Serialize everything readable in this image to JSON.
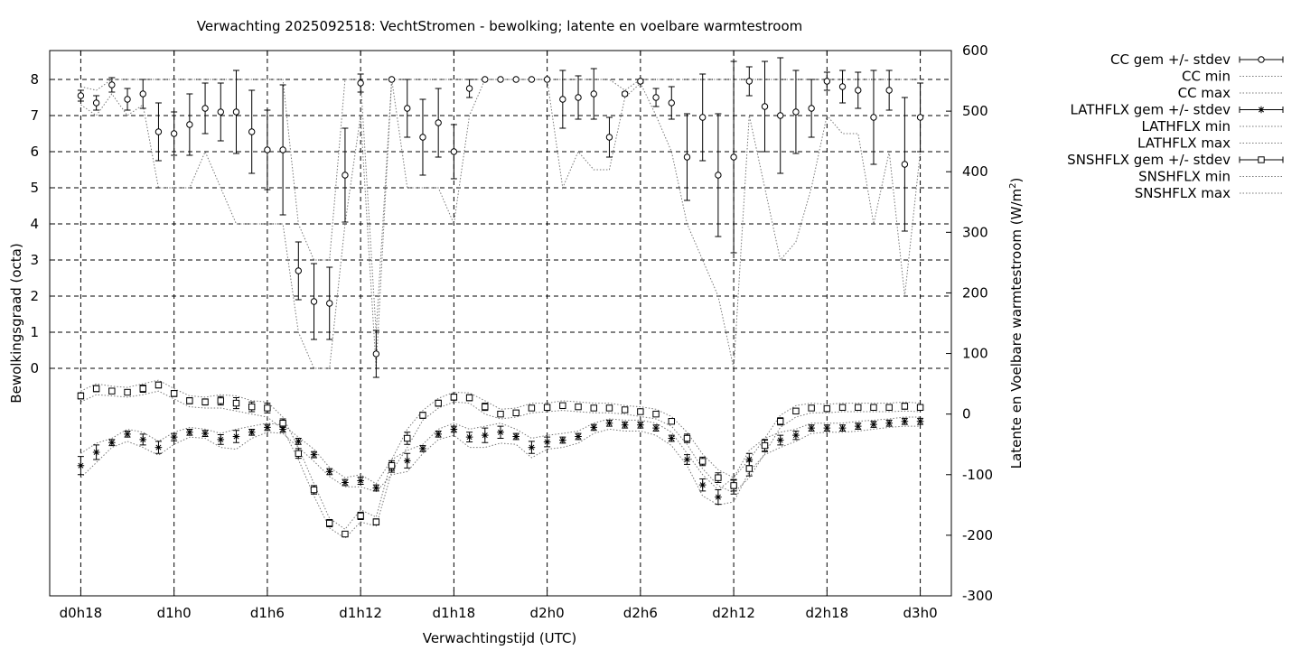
{
  "chart_data": {
    "type": "line",
    "title": "Verwachting 2025092518: VechtStromen - bewolking; latente en voelbare warmtestroom",
    "xlabel": "Verwachtingstijd (UTC)",
    "ylabel": "Bewolkingsgraad (octa)",
    "y2label_main": "Latente en Voelbare warmtestroom (W/m",
    "y2label_sup": "2",
    "y2label_end": ")",
    "x_unit": "hours since d0h18",
    "xlim": [
      -2,
      56
    ],
    "ylim": [
      -6.3,
      8.8
    ],
    "y2lim": [
      -300,
      600
    ],
    "x_ticks": [
      {
        "x": 0,
        "label": "d0h18"
      },
      {
        "x": 6,
        "label": "d1h0"
      },
      {
        "x": 12,
        "label": "d1h6"
      },
      {
        "x": 18,
        "label": "d1h12"
      },
      {
        "x": 24,
        "label": "d1h18"
      },
      {
        "x": 30,
        "label": "d2h0"
      },
      {
        "x": 36,
        "label": "d2h6"
      },
      {
        "x": 42,
        "label": "d2h12"
      },
      {
        "x": 48,
        "label": "d2h18"
      },
      {
        "x": 54,
        "label": "d3h0"
      }
    ],
    "y_ticks": [
      "0",
      "1",
      "2",
      "3",
      "4",
      "5",
      "6",
      "7",
      "8"
    ],
    "y2_ticks": [
      "-300",
      "-200",
      "-100",
      "0",
      "100",
      "200",
      "300",
      "400",
      "500",
      "600"
    ],
    "grid": true,
    "legend_position": "outside-right",
    "legend": [
      "CC gem +/- stdev",
      "CC min",
      "CC max",
      "LATHFLX gem +/- stdev",
      "LATHFLX min",
      "LATHFLX max",
      "SNSHFLX gem +/- stdev",
      "SNSHFLX min",
      "SNSHFLX max"
    ],
    "x": [
      0,
      1,
      2,
      3,
      4,
      5,
      6,
      7,
      8,
      9,
      10,
      11,
      12,
      13,
      14,
      15,
      16,
      17,
      18,
      19,
      20,
      21,
      22,
      23,
      24,
      25,
      26,
      27,
      28,
      29,
      30,
      31,
      32,
      33,
      34,
      35,
      36,
      37,
      38,
      39,
      40,
      41,
      42,
      43,
      44,
      45,
      46,
      47,
      48,
      49,
      50,
      51,
      52,
      53,
      54
    ],
    "series": [
      {
        "name": "CC gem +/- stdev",
        "axis": "y1",
        "marker": "circle",
        "values": [
          7.55,
          7.35,
          7.85,
          7.45,
          7.6,
          6.55,
          6.5,
          6.75,
          7.2,
          7.1,
          7.1,
          6.55,
          6.05,
          6.05,
          2.7,
          1.85,
          1.8,
          5.35,
          7.9,
          0.4,
          8.0,
          7.2,
          6.4,
          6.8,
          6.0,
          7.75,
          8.0,
          8.0,
          8.0,
          8.0,
          8.0,
          7.45,
          7.5,
          7.6,
          6.4,
          7.6,
          7.95,
          7.5,
          7.35,
          5.85,
          6.95,
          5.35,
          5.85,
          7.95,
          7.25,
          7.0,
          7.1,
          7.2,
          7.95,
          7.8,
          7.7,
          6.95,
          7.7,
          5.65,
          6.95
        ],
        "stdev": [
          0.15,
          0.2,
          0.2,
          0.3,
          0.4,
          0.8,
          0.6,
          0.85,
          0.7,
          0.8,
          1.15,
          1.15,
          1.1,
          1.8,
          0.8,
          1.05,
          1.0,
          1.3,
          0.25,
          0.65,
          0.0,
          0.8,
          1.05,
          0.95,
          0.75,
          0.25,
          0.0,
          0.0,
          0.0,
          0.0,
          0.0,
          0.8,
          0.6,
          0.7,
          0.55,
          0.05,
          0.05,
          0.25,
          0.45,
          1.2,
          1.2,
          1.7,
          2.65,
          0.4,
          1.25,
          1.6,
          1.15,
          0.8,
          0.25,
          0.45,
          0.5,
          1.3,
          0.55,
          1.85,
          0.95
        ]
      },
      {
        "name": "CC min",
        "axis": "y1",
        "line": "dotted",
        "values": [
          7.3,
          7.0,
          7.6,
          7.0,
          7.3,
          5.0,
          5.0,
          5.0,
          6.0,
          5.0,
          4.0,
          4.0,
          4.0,
          4.0,
          1.0,
          0.0,
          0.0,
          4.0,
          7.0,
          0.0,
          8.0,
          5.0,
          5.0,
          5.0,
          4.0,
          7.0,
          8.0,
          8.0,
          8.0,
          8.0,
          8.0,
          5.0,
          6.0,
          5.5,
          5.5,
          7.5,
          7.9,
          7.0,
          6.0,
          4.0,
          3.0,
          2.0,
          0.0,
          7.0,
          5.0,
          3.0,
          3.5,
          5.0,
          7.0,
          6.5,
          6.5,
          4.0,
          6.0,
          2.0,
          6.0
        ]
      },
      {
        "name": "CC max",
        "axis": "y1",
        "line": "dotted",
        "values": [
          7.8,
          7.7,
          8.0,
          8.0,
          8.0,
          8.0,
          8.0,
          8.0,
          8.0,
          8.0,
          8.0,
          8.0,
          8.0,
          8.0,
          4.0,
          3.0,
          3.0,
          8.0,
          8.0,
          1.0,
          8.0,
          8.0,
          8.0,
          8.0,
          8.0,
          8.0,
          8.0,
          8.0,
          8.0,
          8.0,
          8.0,
          8.0,
          8.0,
          8.0,
          8.0,
          7.7,
          8.0,
          8.0,
          8.0,
          8.0,
          8.0,
          8.0,
          8.0,
          8.0,
          8.0,
          8.0,
          8.0,
          8.0,
          8.0,
          8.0,
          8.0,
          8.0,
          8.0,
          8.0,
          8.0
        ]
      },
      {
        "name": "LATHFLX gem +/- stdev",
        "axis": "y2",
        "marker": "star",
        "values": [
          -85,
          -63,
          -47,
          -33,
          -42,
          -55,
          -38,
          -30,
          -32,
          -42,
          -37,
          -30,
          -22,
          -25,
          -45,
          -67,
          -95,
          -113,
          -110,
          -122,
          -88,
          -77,
          -57,
          -33,
          -25,
          -38,
          -35,
          -30,
          -37,
          -55,
          -46,
          -43,
          -37,
          -22,
          -15,
          -18,
          -18,
          -23,
          -40,
          -75,
          -117,
          -137,
          -120,
          -75,
          -52,
          -43,
          -35,
          -23,
          -23,
          -23,
          -20,
          -17,
          -15,
          -12,
          -12
        ],
        "stdev": [
          15,
          12,
          5,
          5,
          9,
          10,
          6,
          5,
          5,
          8,
          10,
          5,
          5,
          5,
          5,
          5,
          5,
          5,
          6,
          5,
          8,
          12,
          5,
          5,
          5,
          8,
          12,
          10,
          5,
          10,
          8,
          5,
          5,
          5,
          5,
          5,
          5,
          5,
          5,
          8,
          10,
          12,
          12,
          10,
          10,
          8,
          7,
          5,
          5,
          5,
          5,
          5,
          5,
          5,
          5
        ]
      },
      {
        "name": "LATHFLX min",
        "axis": "y2",
        "line": "dotted",
        "values": [
          -105,
          -80,
          -55,
          -45,
          -55,
          -68,
          -50,
          -38,
          -40,
          -55,
          -58,
          -40,
          -30,
          -32,
          -55,
          -78,
          -103,
          -120,
          -120,
          -128,
          -100,
          -95,
          -65,
          -42,
          -35,
          -55,
          -55,
          -48,
          -50,
          -72,
          -58,
          -55,
          -48,
          -32,
          -25,
          -28,
          -28,
          -35,
          -52,
          -85,
          -135,
          -150,
          -145,
          -95,
          -67,
          -55,
          -45,
          -32,
          -30,
          -30,
          -28,
          -25,
          -22,
          -20,
          -20
        ]
      },
      {
        "name": "LATHFLX max",
        "axis": "y2",
        "line": "dotted",
        "values": [
          -65,
          -48,
          -40,
          -25,
          -30,
          -45,
          -30,
          -22,
          -25,
          -32,
          -25,
          -20,
          -15,
          -18,
          -38,
          -58,
          -88,
          -105,
          -100,
          -115,
          -75,
          -60,
          -50,
          -25,
          -15,
          -25,
          -20,
          -15,
          -25,
          -40,
          -35,
          -32,
          -28,
          -15,
          -8,
          -10,
          -10,
          -15,
          -30,
          -65,
          -100,
          -125,
          -105,
          -60,
          -40,
          -30,
          -25,
          -15,
          -15,
          -15,
          -12,
          -10,
          -8,
          -5,
          -5
        ]
      },
      {
        "name": "SNSHFLX gem +/- stdev",
        "axis": "y2",
        "marker": "square",
        "values": [
          30,
          42,
          38,
          36,
          42,
          48,
          34,
          22,
          20,
          22,
          18,
          12,
          10,
          -15,
          -65,
          -125,
          -180,
          -198,
          -168,
          -178,
          -85,
          -40,
          -2,
          18,
          28,
          27,
          12,
          0,
          2,
          10,
          11,
          14,
          12,
          10,
          10,
          7,
          4,
          0,
          -12,
          -40,
          -78,
          -105,
          -118,
          -90,
          -52,
          -12,
          5,
          10,
          9,
          11,
          11,
          11,
          11,
          13,
          11
        ],
        "stdev": [
          5,
          5,
          4,
          4,
          6,
          5,
          5,
          5,
          5,
          7,
          9,
          8,
          8,
          7,
          8,
          7,
          6,
          4,
          6,
          5,
          8,
          10,
          5,
          5,
          5,
          5,
          6,
          4,
          3,
          4,
          4,
          3,
          3,
          3,
          3,
          3,
          3,
          3,
          4,
          7,
          7,
          8,
          9,
          12,
          9,
          6,
          4,
          4,
          4,
          3,
          3,
          3,
          3,
          5,
          3
        ]
      },
      {
        "name": "SNSHFLX min",
        "axis": "y2",
        "line": "dotted",
        "values": [
          20,
          32,
          30,
          28,
          32,
          38,
          25,
          12,
          10,
          10,
          5,
          0,
          -5,
          -25,
          -75,
          -135,
          -188,
          -205,
          -178,
          -185,
          -95,
          -55,
          -10,
          10,
          20,
          18,
          0,
          -8,
          -5,
          2,
          4,
          6,
          4,
          2,
          2,
          0,
          -4,
          -8,
          -20,
          -50,
          -90,
          -118,
          -130,
          -105,
          -65,
          -22,
          -5,
          2,
          2,
          4,
          4,
          4,
          4,
          5,
          4
        ]
      },
      {
        "name": "SNSHFLX max",
        "axis": "y2",
        "line": "dotted",
        "values": [
          38,
          50,
          46,
          44,
          50,
          56,
          42,
          30,
          28,
          32,
          30,
          22,
          20,
          -5,
          -55,
          -115,
          -172,
          -190,
          -158,
          -170,
          -75,
          -25,
          6,
          26,
          36,
          35,
          22,
          8,
          10,
          18,
          18,
          22,
          20,
          18,
          18,
          14,
          12,
          8,
          -4,
          -30,
          -66,
          -92,
          -105,
          -75,
          -40,
          -2,
          14,
          18,
          16,
          18,
          18,
          18,
          18,
          20,
          18
        ]
      }
    ]
  }
}
